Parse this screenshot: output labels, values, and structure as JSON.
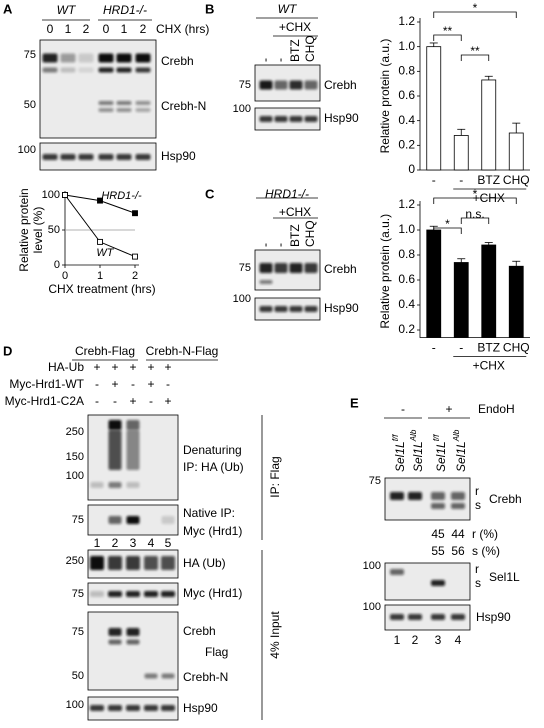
{
  "panels": {
    "A": {
      "label": "A",
      "genotypes": [
        "WT",
        "HRD1-/-"
      ],
      "chx_label": "CHX (hrs)",
      "times": [
        0,
        1,
        2,
        0,
        1,
        2
      ],
      "markers": [
        75,
        50,
        100
      ],
      "bands": [
        "Crebh",
        "Crebh-N",
        "Hsp90"
      ]
    },
    "B": {
      "label": "B",
      "genotype": "WT",
      "treatment": "+CHX",
      "lanes": [
        "-",
        "-",
        "BTZ",
        "CHQ"
      ],
      "markers": [
        75,
        100
      ],
      "bands": [
        "Crebh",
        "Hsp90"
      ]
    },
    "C": {
      "label": "C",
      "genotype": "HRD1-/-",
      "treatment": "+CHX",
      "lanes": [
        "-",
        "-",
        "BTZ",
        "CHQ"
      ],
      "markers": [
        75,
        100
      ],
      "bands": [
        "Crebh",
        "Hsp90"
      ]
    },
    "D": {
      "label": "D",
      "constructs": [
        "Crebh-Flag",
        "Crebh-N-Flag"
      ],
      "conditions": [
        {
          "label": "HA-Ub",
          "signs": [
            "+",
            "+",
            "+",
            "+",
            "+"
          ]
        },
        {
          "label": "Myc-Hrd1-WT",
          "signs": [
            "-",
            "+",
            "-",
            "+",
            "-"
          ]
        },
        {
          "label": "Myc-Hrd1-C2A",
          "signs": [
            "-",
            "-",
            "+",
            "-",
            "+"
          ]
        }
      ],
      "ip_markers": [
        250,
        150,
        100,
        75
      ],
      "ip_labels": [
        [
          "Denaturing",
          "IP: HA (Ub)"
        ],
        [
          "Native IP:",
          "Myc (Hrd1)"
        ]
      ],
      "ip_section": "IP: Flag",
      "lanes": [
        1,
        2,
        3,
        4,
        5
      ],
      "input_markers": [
        250,
        75,
        75,
        50,
        100
      ],
      "input_labels": [
        "HA (Ub)",
        "Myc (Hrd1)",
        "Crebh",
        "Flag",
        "Crebh-N",
        "Hsp90"
      ],
      "input_section": "4% Input"
    },
    "E": {
      "label": "E",
      "endoh": [
        "-",
        "+"
      ],
      "endoh_label": "EndoH",
      "lanes": [
        {
          "gene": "Sel1L",
          "allele": "f/f"
        },
        {
          "gene": "Sel1L",
          "allele": "Alb"
        },
        {
          "gene": "Sel1L",
          "allele": "f/f"
        },
        {
          "gene": "Sel1L",
          "allele": "Alb"
        }
      ],
      "markers": [
        75,
        100,
        100
      ],
      "crebh_forms": [
        "r",
        "s"
      ],
      "crebh_label": "Crebh",
      "quant": [
        {
          "values": [
            45,
            44
          ],
          "label": "r (%)"
        },
        {
          "values": [
            55,
            56
          ],
          "label": "s (%)"
        }
      ],
      "sel1l_forms": [
        "r",
        "s"
      ],
      "sel1l_label": "Sel1L",
      "hsp90_label": "Hsp90",
      "lane_numbers": [
        1,
        2,
        3,
        4
      ]
    }
  },
  "chart_data": [
    {
      "type": "line",
      "x": [
        0,
        1,
        2
      ],
      "xlim": [
        0,
        2
      ],
      "xticks": [
        0,
        1,
        2
      ],
      "ylim": [
        0,
        100
      ],
      "yticks": [
        0,
        50,
        100
      ],
      "ylabel": [
        "Relative protein",
        "level (%)"
      ],
      "xlabel": "CHX treatment (hrs)",
      "reference_line": 50,
      "series": [
        {
          "name": "HRD1-/-",
          "color": "#000000",
          "marker": "filled-square",
          "values": [
            100,
            92,
            74
          ]
        },
        {
          "name": "WT",
          "color": "#000000",
          "marker": "open-square",
          "values": [
            100,
            33,
            12
          ]
        }
      ]
    },
    {
      "type": "bar",
      "categories": [
        "-",
        "-",
        "BTZ",
        "CHQ"
      ],
      "values": [
        1.0,
        0.28,
        0.73,
        0.3
      ],
      "errors": [
        0.03,
        0.05,
        0.03,
        0.08
      ],
      "color": "#ffffff",
      "edge_color": "#000000",
      "ylabel": "Relative protein (a.u.)",
      "group_label": "+CHX",
      "ylim": [
        0,
        1.2
      ],
      "yticks": [
        0,
        0.2,
        0.4,
        0.6,
        0.8,
        {
          "value": 1,
          "label": "1.0"
        },
        1.2
      ],
      "annotations": [
        "**",
        "**",
        "*"
      ]
    },
    {
      "type": "bar",
      "categories": [
        "-",
        "-",
        "BTZ",
        "CHQ"
      ],
      "values": [
        1.0,
        0.74,
        0.88,
        0.71
      ],
      "errors": [
        0.03,
        0.03,
        0.02,
        0.04
      ],
      "color": "#000000",
      "edge_color": "#000000",
      "ylabel": "Relative protein (a.u.)",
      "group_label": "+CHX",
      "ylim": [
        0.14,
        1.2
      ],
      "yticks": [
        0.2,
        0.4,
        0.6,
        0.8,
        {
          "value": 1,
          "label": "1.0"
        },
        1.2
      ],
      "annotations": [
        "*",
        "n.s.",
        "*"
      ]
    }
  ]
}
